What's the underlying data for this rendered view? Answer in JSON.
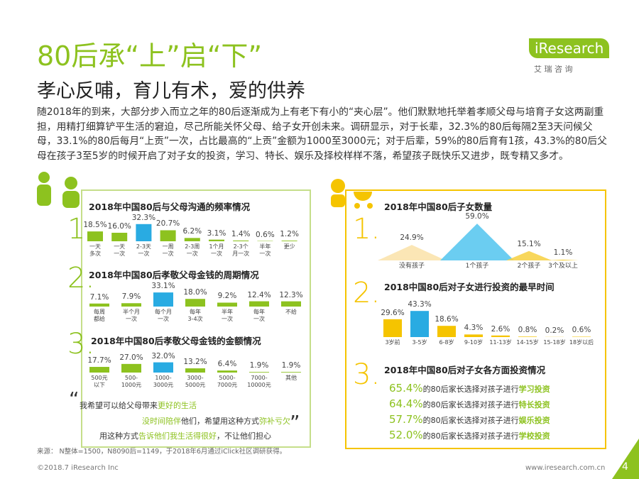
{
  "header": {
    "title": "80后承“上”启“下”",
    "subtitle": "孝心反哺，育儿有术，爱的供养",
    "intro": "随2018年的到来，大部分步入而立之年的80后逐渐成为上有老下有小的“夹心层”。他们默默地托举着孝顺父母与培育子女这两副重担，用精打细算铲平生活的窘迫，尽己所能关怀父母、给子女开创未来。调研显示，对于长辈，32.3%的80后每隔2至3天问候父母，33.1%的80后每月“上贡”一次，占比最高的“上贡”金额为1000至3000元；对于后辈，59%的80后育有1孩，43.3%的80后父母在孩子3至5岁的时候开启了对子女的投资，学习、特长、娱乐及择校样样不落，希望孩子既快乐又进步，既专精又多才。"
  },
  "logo": {
    "name": "iResearch",
    "cn": "艾 瑞 咨 询"
  },
  "chart_data": [
    {
      "type": "bar",
      "label": "1.",
      "title": "2018年中国80后与父母沟通的频率情况",
      "categories": [
        "一天\n多次",
        "一天\n一次",
        "2-3天\n一次",
        "一周\n一次",
        "2-3周\n一次",
        "1个月\n一次",
        "2-3个\n月一次",
        "半年\n一次",
        "更少"
      ],
      "values": [
        18.5,
        16.0,
        32.3,
        20.7,
        6.2,
        3.1,
        1.4,
        0.6,
        1.2
      ],
      "value_labels": [
        "18.5%",
        "16.0%",
        "32.3%",
        "20.7%",
        "6.2%",
        "3.1%",
        "1.4%",
        "0.6%",
        "1.2%"
      ],
      "colors": [
        "#8dc21f",
        "#8dc21f",
        "#29abe2",
        "#8dc21f",
        "#8dc21f",
        "#8dc21f",
        "#8dc21f",
        "#8dc21f",
        "#8dc21f"
      ]
    },
    {
      "type": "bar",
      "label": "2.",
      "title": "2018年中国80后孝敬父母金钱的周期情况",
      "categories": [
        "每周\n都给",
        "半个月\n一次",
        "每个月\n一次",
        "每年\n3-4次",
        "半年\n一次",
        "每年\n一次",
        "不给"
      ],
      "values": [
        7.1,
        7.9,
        33.1,
        18.0,
        9.2,
        12.4,
        12.3
      ],
      "value_labels": [
        "7.1%",
        "7.9%",
        "33.1%",
        "18.0%",
        "9.2%",
        "12.4%",
        "12.3%"
      ],
      "colors": [
        "#8dc21f",
        "#8dc21f",
        "#29abe2",
        "#8dc21f",
        "#8dc21f",
        "#8dc21f",
        "#8dc21f"
      ]
    },
    {
      "type": "bar",
      "label": "3.",
      "title": "2018年中国80后孝敬父母金钱的金额情况",
      "categories": [
        "500元\n以下",
        "500-\n1000元",
        "1000-\n3000元",
        "3000-\n5000元",
        "5000-\n7000元",
        "7000-\n10000元",
        "其他"
      ],
      "values": [
        17.7,
        27.0,
        32.0,
        13.2,
        6.4,
        1.9,
        1.9
      ],
      "value_labels": [
        "17.7%",
        "27.0%",
        "32.0%",
        "13.2%",
        "6.4%",
        "1.9%",
        "1.9%"
      ],
      "colors": [
        "#8dc21f",
        "#8dc21f",
        "#29abe2",
        "#8dc21f",
        "#8dc21f",
        "#8dc21f",
        "#8dc21f"
      ]
    },
    {
      "type": "triangle",
      "label": "1.",
      "title": "2018年中国80后子女数量",
      "categories": [
        "没有孩子",
        "1个孩子",
        "2个孩子",
        "3个及以上"
      ],
      "values": [
        24.9,
        59.0,
        15.1,
        1.1
      ],
      "value_labels": [
        "24.9%",
        "59.0%",
        "15.1%",
        "1.1%"
      ],
      "colors": [
        "#fbe3ad",
        "#5bc8f0",
        "#f7d34a",
        "#f5c400"
      ]
    },
    {
      "type": "bar",
      "label": "2.",
      "title": "2018中国80后对子女进行投资的最早时间",
      "categories": [
        "3岁前",
        "3-5岁",
        "6-8岁",
        "9-10岁",
        "11-13岁",
        "14-15岁",
        "15-18岁",
        "18岁以后"
      ],
      "values": [
        29.6,
        43.3,
        18.6,
        4.3,
        2.6,
        0.8,
        0.2,
        0.6
      ],
      "value_labels": [
        "29.6%",
        "43.3%",
        "18.6%",
        "4.3%",
        "2.6%",
        "0.8%",
        "0.2%",
        "0.6%"
      ],
      "colors": [
        "#f5c400",
        "#29abe2",
        "#f5c400",
        "#f5c400",
        "#f5c400",
        "#f5c400",
        "#f5c400",
        "#f5c400"
      ]
    },
    {
      "type": "stat-list",
      "label": "3.",
      "title": "2018年中国80后对子女各方面投资情况",
      "phrase": "的80后家长选择对孩子进行",
      "categories": [
        "学习投资",
        "特长投资",
        "娱乐投资",
        "学校投资"
      ],
      "values": [
        65.4,
        64.4,
        57.7,
        52.0
      ],
      "value_labels": [
        "65.4%",
        "64.4%",
        "57.7%",
        "52.0%"
      ],
      "color": "#8dc21f"
    }
  ],
  "quotes": [
    [
      {
        "text": "我希望可以给父母带来",
        "color": "#333333"
      },
      {
        "text": "更好的生活",
        "color": "#8dc21f"
      }
    ],
    [
      {
        "text": "没时间陪伴",
        "color": "#8dc21f"
      },
      {
        "text": "他们，希望用这种方式",
        "color": "#333333"
      },
      {
        "text": "弥补亏欠",
        "color": "#8dc21f"
      }
    ],
    [
      {
        "text": "用这种方式",
        "color": "#333333"
      },
      {
        "text": "告诉他们我生活得很好",
        "color": "#8dc21f"
      },
      {
        "text": "，不让他们担心",
        "color": "#333333"
      }
    ]
  ],
  "source": "来源： N整体=1500，N8090后=1149，于2018年6月通过iClick社区调研获得。",
  "footer": {
    "copyright": "©2018.7 iResearch Inc",
    "url": "www.iresearch.com.cn",
    "page": "4"
  }
}
